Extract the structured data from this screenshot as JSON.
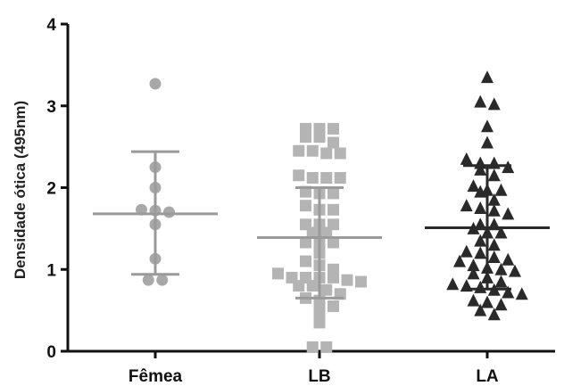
{
  "chart_data": {
    "type": "scatter",
    "ylabel": "Densidade ótica (495nm)",
    "ylim": [
      0,
      4
    ],
    "yticks": [
      "0",
      "1",
      "2",
      "3",
      "4"
    ],
    "categories": [
      "Fêmea",
      "LB",
      "LA"
    ],
    "series": [
      {
        "name": "Fêmea",
        "marker": "circle",
        "color": "#a8a8a8",
        "values": [
          3.27,
          2.25,
          2.0,
          1.73,
          1.72,
          1.7,
          1.55,
          1.13,
          0.87,
          0.87
        ],
        "mean": 1.68,
        "sd_upper": 2.44,
        "sd_lower": 0.94
      },
      {
        "name": "LB",
        "marker": "square",
        "color": "#b4b4b4",
        "values": [
          2.72,
          2.72,
          2.72,
          2.62,
          2.62,
          2.55,
          2.45,
          2.45,
          2.42,
          2.42,
          2.15,
          2.12,
          2.12,
          2.12,
          1.95,
          1.93,
          1.93,
          1.78,
          1.73,
          1.73,
          1.55,
          1.55,
          1.55,
          1.45,
          1.45,
          1.33,
          1.33,
          1.33,
          1.2,
          1.1,
          1.05,
          1.0,
          0.95,
          0.9,
          0.9,
          0.9,
          0.9,
          0.87,
          0.85,
          0.8,
          0.8,
          0.75,
          0.7,
          0.65,
          0.62,
          0.55,
          0.48,
          0.35,
          0.05,
          0.05
        ],
        "mean": 1.39,
        "sd_upper": 2.0,
        "sd_lower": 0.65
      },
      {
        "name": "LA",
        "marker": "triangle",
        "color": "#2a2a2a",
        "values": [
          3.35,
          3.05,
          3.02,
          2.75,
          2.55,
          2.35,
          2.3,
          2.3,
          2.25,
          2.22,
          2.15,
          2.02,
          1.97,
          1.97,
          1.95,
          1.85,
          1.78,
          1.75,
          1.72,
          1.68,
          1.55,
          1.55,
          1.5,
          1.45,
          1.45,
          1.35,
          1.3,
          1.22,
          1.2,
          1.15,
          1.12,
          1.1,
          1.05,
          1.02,
          1.0,
          0.98,
          0.95,
          0.9,
          0.85,
          0.82,
          0.8,
          0.78,
          0.75,
          0.72,
          0.7,
          0.62,
          0.6,
          0.57,
          0.5,
          0.45
        ],
        "mean": 1.51,
        "sd_upper": 2.27,
        "sd_lower": 0.76
      }
    ]
  }
}
